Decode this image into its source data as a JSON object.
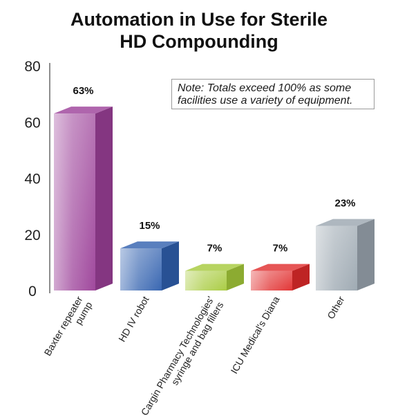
{
  "title_lines": [
    "Automation in Use for Sterile",
    "HD Compounding"
  ],
  "note_lines": [
    "Note: Totals exceed 100% as some",
    "facilities use a variety of equipment."
  ],
  "chart_data": {
    "type": "bar",
    "title": "Automation in Use for Sterile HD Compounding",
    "categories": [
      [
        "Baxter repeater",
        "pump"
      ],
      [
        "HD IV robot"
      ],
      [
        "Cargin Pharmacy Technologies'",
        "syringe and bag fillers"
      ],
      [
        "ICU Medical's Diana"
      ],
      [
        "Other"
      ]
    ],
    "values": [
      63,
      15,
      7,
      7,
      23
    ],
    "data_labels": [
      "63%",
      "15%",
      "7%",
      "7%",
      "23%"
    ],
    "ylim": [
      0,
      80
    ],
    "yticks": [
      0,
      20,
      40,
      60,
      80
    ],
    "grid": false,
    "bar_colors": [
      "#9b3f98",
      "#2f5fae",
      "#a5c93a",
      "#e02a2a",
      "#9aa5af"
    ],
    "xlabel": "",
    "ylabel": ""
  }
}
